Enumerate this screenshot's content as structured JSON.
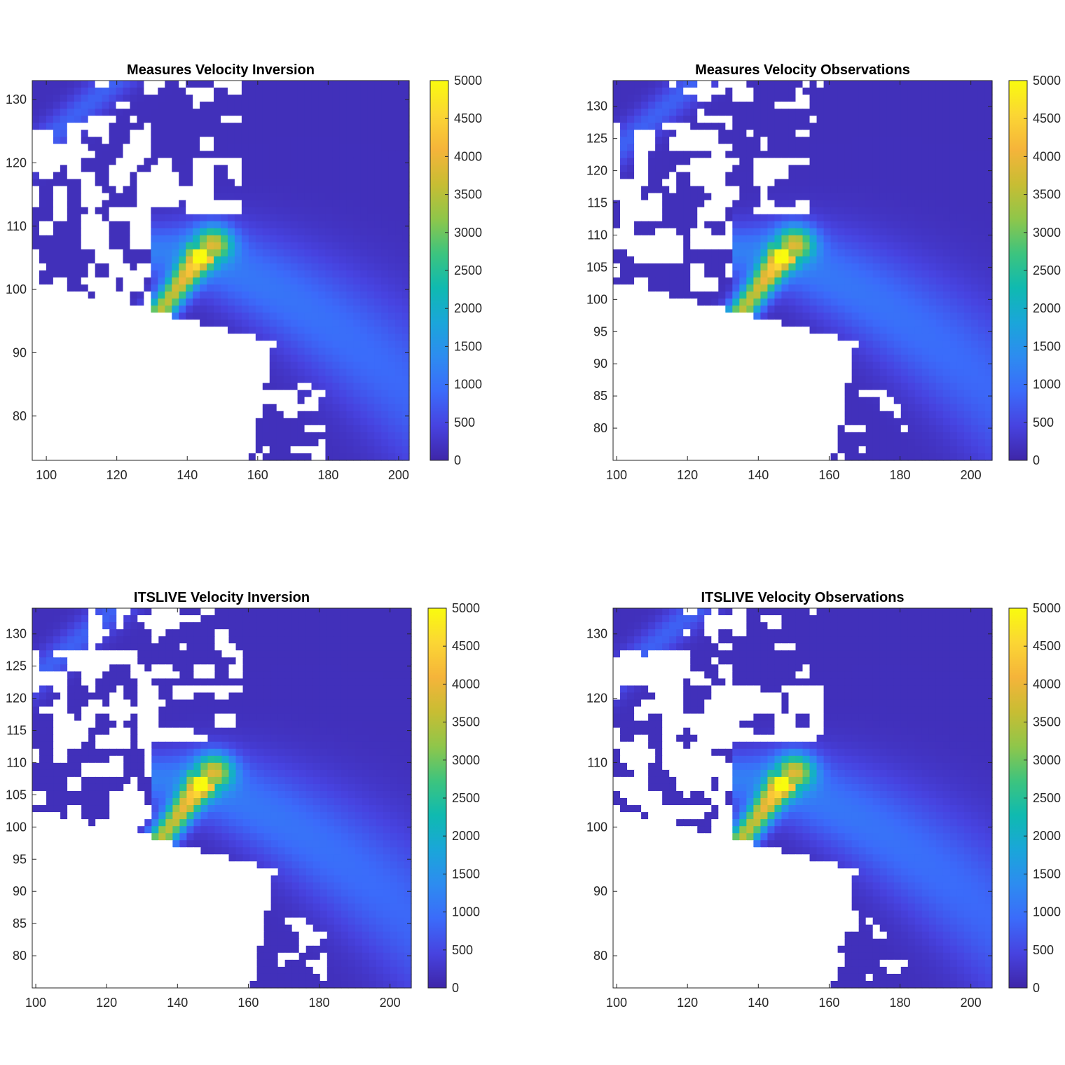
{
  "colorbar": {
    "colors": [
      "#3e26a8",
      "#4743e0",
      "#3b6bfa",
      "#2d8cf0",
      "#1aa6d9",
      "#0fbab0",
      "#3dc47e",
      "#8fc64a",
      "#c8bd33",
      "#f5b43a",
      "#fbd634",
      "#f9fb0e"
    ],
    "mask_color": "#ffffff",
    "ticks": [
      "0",
      "500",
      "1000",
      "1500",
      "2000",
      "2500",
      "3000",
      "3500",
      "4000",
      "4500",
      "5000"
    ]
  },
  "chart_data": [
    {
      "type": "heatmap",
      "title": "Measures Velocity Inversion",
      "xlabel": "",
      "ylabel": "",
      "xlim": [
        96,
        203
      ],
      "ylim": [
        73,
        133
      ],
      "xticks": [
        "100",
        "120",
        "140",
        "160",
        "180",
        "200"
      ],
      "yticks": [
        "80",
        "90",
        "100",
        "110",
        "120",
        "130"
      ],
      "clim": [
        0,
        5000
      ],
      "colorbar_ticks": [
        "0",
        "500",
        "1000",
        "1500",
        "2000",
        "2500",
        "3000",
        "3500",
        "4000",
        "4500",
        "5000"
      ]
    },
    {
      "type": "heatmap",
      "title": "Measures Velocity Observations",
      "xlabel": "",
      "ylabel": "",
      "xlim": [
        99,
        206
      ],
      "ylim": [
        75,
        134
      ],
      "xticks": [
        "100",
        "120",
        "140",
        "160",
        "180",
        "200"
      ],
      "yticks": [
        "80",
        "85",
        "90",
        "95",
        "100",
        "105",
        "110",
        "115",
        "120",
        "125",
        "130"
      ],
      "clim": [
        0,
        5000
      ],
      "colorbar_ticks": [
        "0",
        "500",
        "1000",
        "1500",
        "2000",
        "2500",
        "3000",
        "3500",
        "4000",
        "4500",
        "5000"
      ]
    },
    {
      "type": "heatmap",
      "title": "ITSLIVE Velocity Inversion",
      "xlabel": "",
      "ylabel": "",
      "xlim": [
        99,
        206
      ],
      "ylim": [
        75,
        134
      ],
      "xticks": [
        "100",
        "120",
        "140",
        "160",
        "180",
        "200"
      ],
      "yticks": [
        "80",
        "85",
        "90",
        "95",
        "100",
        "105",
        "110",
        "115",
        "120",
        "125",
        "130"
      ],
      "clim": [
        0,
        5000
      ],
      "colorbar_ticks": [
        "0",
        "500",
        "1000",
        "1500",
        "2000",
        "2500",
        "3000",
        "3500",
        "4000",
        "4500",
        "5000"
      ]
    },
    {
      "type": "heatmap",
      "title": "ITSLIVE Velocity Observations",
      "xlabel": "",
      "ylabel": "",
      "xlim": [
        99,
        206
      ],
      "ylim": [
        75,
        134
      ],
      "xticks": [
        "100",
        "120",
        "140",
        "160",
        "180",
        "200"
      ],
      "yticks": [
        "80",
        "90",
        "100",
        "110",
        "120",
        "130"
      ],
      "clim": [
        0,
        5000
      ],
      "colorbar_ticks": [
        "0",
        "500",
        "1000",
        "1500",
        "2000",
        "2500",
        "3000",
        "3500",
        "4000",
        "4500",
        "5000"
      ]
    }
  ]
}
